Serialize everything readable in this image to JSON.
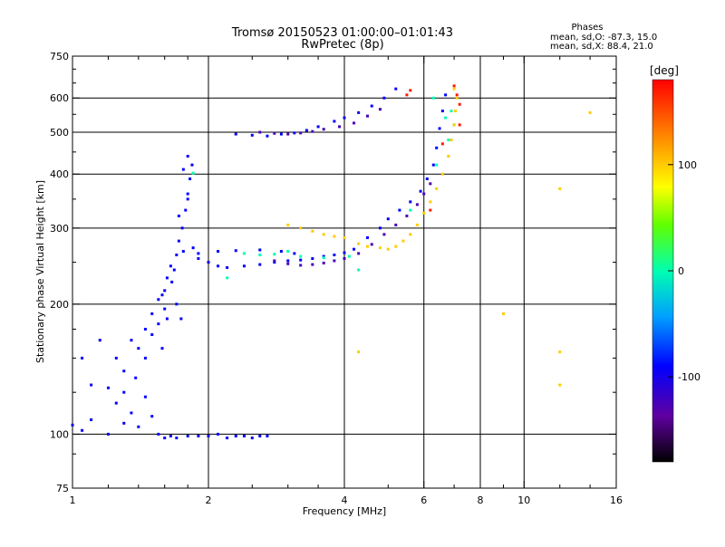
{
  "title": "Tromsø 20150523 01:00:00–01:01:43",
  "subtitle": "RwPretec (8p)",
  "stats": {
    "heading": "Phases",
    "line_o": "mean, sd,O:  -87.3, 15.0",
    "line_x": "mean, sd,X:   88.4, 21.0"
  },
  "chart_data": {
    "type": "scatter",
    "title": "Tromsø 20150523 01:00:00–01:01:43",
    "subtitle": "RwPretec (8p)",
    "xlabel": "Frequency [MHz]",
    "ylabel": "Stationary phase Virtual Height [km]",
    "x_scale": "log",
    "y_scale": "log",
    "xlim": [
      1,
      16
    ],
    "ylim": [
      75,
      750
    ],
    "x_ticks": [
      1,
      2,
      4,
      6,
      8,
      10,
      16
    ],
    "x_tick_labels": [
      "1",
      "2",
      "4",
      "6",
      "8",
      "10",
      "16"
    ],
    "y_ticks": [
      75,
      100,
      200,
      300,
      400,
      500,
      600,
      750
    ],
    "y_tick_labels": [
      "75",
      "100",
      "200",
      "300",
      "400",
      "500",
      "600",
      "750"
    ],
    "x_major_grid": [
      2,
      4,
      6,
      8,
      10
    ],
    "y_major_grid": [
      100,
      200,
      300,
      400,
      500,
      600
    ],
    "grid": true,
    "colorbar": {
      "label": "[deg]",
      "min": -180,
      "max": 180,
      "ticks": [
        100,
        0,
        -100
      ],
      "tick_labels": [
        "100",
        "0",
        "-100"
      ]
    },
    "series": [
      {
        "phase": -100,
        "points": [
          [
            1.0,
            105
          ],
          [
            1.05,
            102
          ],
          [
            1.1,
            108
          ],
          [
            1.2,
            100
          ],
          [
            1.3,
            106
          ],
          [
            1.4,
            104
          ],
          [
            1.5,
            110
          ],
          [
            1.55,
            100
          ],
          [
            1.6,
            98
          ],
          [
            1.65,
            99
          ],
          [
            1.7,
            98
          ],
          [
            1.8,
            99
          ],
          [
            1.9,
            99
          ],
          [
            2.0,
            99
          ],
          [
            2.1,
            100
          ],
          [
            2.2,
            98
          ],
          [
            2.3,
            99
          ],
          [
            2.4,
            99
          ],
          [
            2.5,
            98
          ],
          [
            2.6,
            99
          ],
          [
            2.7,
            99
          ],
          [
            1.1,
            130
          ],
          [
            1.2,
            128
          ],
          [
            1.25,
            150
          ],
          [
            1.3,
            140
          ],
          [
            1.35,
            165
          ],
          [
            1.4,
            158
          ],
          [
            1.45,
            175
          ],
          [
            1.5,
            190
          ],
          [
            1.55,
            205
          ],
          [
            1.6,
            215
          ],
          [
            1.62,
            230
          ],
          [
            1.65,
            245
          ],
          [
            1.7,
            260
          ],
          [
            1.72,
            280
          ],
          [
            1.75,
            300
          ],
          [
            1.78,
            330
          ],
          [
            1.8,
            360
          ],
          [
            1.82,
            390
          ],
          [
            1.84,
            420
          ],
          [
            1.8,
            440
          ],
          [
            1.55,
            180
          ],
          [
            1.6,
            195
          ],
          [
            1.5,
            170
          ],
          [
            1.45,
            150
          ],
          [
            1.38,
            135
          ],
          [
            1.3,
            125
          ],
          [
            1.58,
            210
          ],
          [
            1.66,
            225
          ],
          [
            1.7,
            200
          ],
          [
            1.74,
            185
          ],
          [
            1.68,
            240
          ],
          [
            1.76,
            265
          ],
          [
            1.85,
            270
          ],
          [
            1.9,
            255
          ],
          [
            2.0,
            250
          ],
          [
            2.1,
            245
          ],
          [
            2.2,
            243
          ],
          [
            2.4,
            245
          ],
          [
            2.6,
            247
          ],
          [
            2.8,
            250
          ],
          [
            3.0,
            252
          ],
          [
            3.2,
            253
          ],
          [
            3.4,
            255
          ],
          [
            3.6,
            258
          ],
          [
            3.8,
            260
          ],
          [
            4.0,
            263
          ],
          [
            4.2,
            268
          ],
          [
            4.5,
            285
          ],
          [
            4.8,
            300
          ],
          [
            5.0,
            315
          ],
          [
            5.3,
            330
          ],
          [
            5.6,
            345
          ],
          [
            5.9,
            365
          ],
          [
            6.1,
            390
          ],
          [
            6.3,
            420
          ],
          [
            6.4,
            460
          ],
          [
            6.5,
            510
          ],
          [
            6.6,
            560
          ],
          [
            6.7,
            610
          ],
          [
            1.9,
            262
          ],
          [
            2.1,
            265
          ],
          [
            2.3,
            266
          ],
          [
            2.6,
            267
          ],
          [
            2.9,
            265
          ],
          [
            3.1,
            262
          ],
          [
            2.3,
            495
          ],
          [
            2.5,
            492
          ],
          [
            2.7,
            490
          ],
          [
            2.9,
            495
          ],
          [
            3.1,
            498
          ],
          [
            3.3,
            505
          ],
          [
            3.5,
            515
          ],
          [
            3.8,
            530
          ],
          [
            4.0,
            540
          ],
          [
            4.3,
            555
          ],
          [
            4.6,
            575
          ],
          [
            4.9,
            600
          ],
          [
            5.2,
            630
          ],
          [
            1.15,
            165
          ],
          [
            1.05,
            150
          ],
          [
            1.25,
            118
          ],
          [
            1.35,
            112
          ],
          [
            1.45,
            122
          ],
          [
            1.58,
            158
          ],
          [
            1.62,
            185
          ],
          [
            1.72,
            320
          ],
          [
            1.8,
            350
          ],
          [
            1.76,
            410
          ]
        ]
      },
      {
        "phase": -130,
        "points": [
          [
            2.8,
            252
          ],
          [
            3.0,
            248
          ],
          [
            3.2,
            246
          ],
          [
            3.4,
            247
          ],
          [
            3.6,
            249
          ],
          [
            3.8,
            252
          ],
          [
            4.0,
            255
          ],
          [
            4.3,
            262
          ],
          [
            4.6,
            275
          ],
          [
            4.9,
            290
          ],
          [
            5.2,
            305
          ],
          [
            5.5,
            320
          ],
          [
            5.8,
            340
          ],
          [
            6.0,
            360
          ],
          [
            6.2,
            380
          ],
          [
            2.6,
            500
          ],
          [
            2.8,
            497
          ],
          [
            3.0,
            495
          ],
          [
            3.2,
            498
          ],
          [
            3.4,
            502
          ],
          [
            3.6,
            508
          ],
          [
            3.9,
            515
          ],
          [
            4.2,
            525
          ],
          [
            4.5,
            545
          ],
          [
            4.8,
            565
          ]
        ]
      },
      {
        "phase": 0,
        "points": [
          [
            2.4,
            262
          ],
          [
            2.6,
            260
          ],
          [
            2.8,
            261
          ],
          [
            3.2,
            258
          ],
          [
            3.6,
            256
          ],
          [
            4.1,
            258
          ],
          [
            4.3,
            240
          ],
          [
            5.6,
            330
          ],
          [
            6.4,
            420
          ],
          [
            6.8,
            480
          ],
          [
            7.0,
            520
          ],
          [
            6.9,
            560
          ],
          [
            6.7,
            540
          ],
          [
            3.0,
            265
          ],
          [
            1.85,
            402
          ],
          [
            2.2,
            230
          ],
          [
            6.3,
            600
          ]
        ]
      },
      {
        "phase": 100,
        "points": [
          [
            3.0,
            305
          ],
          [
            3.2,
            300
          ],
          [
            3.4,
            295
          ],
          [
            3.6,
            290
          ],
          [
            3.8,
            287
          ],
          [
            4.0,
            285
          ],
          [
            4.3,
            276
          ],
          [
            4.5,
            272
          ],
          [
            4.8,
            270
          ],
          [
            5.0,
            268
          ],
          [
            5.2,
            272
          ],
          [
            5.4,
            280
          ],
          [
            5.6,
            290
          ],
          [
            5.8,
            305
          ],
          [
            6.0,
            325
          ],
          [
            6.2,
            345
          ],
          [
            6.4,
            370
          ],
          [
            6.6,
            400
          ],
          [
            6.8,
            440
          ],
          [
            6.9,
            480
          ],
          [
            7.0,
            520
          ],
          [
            7.05,
            560
          ],
          [
            7.1,
            600
          ],
          [
            7.0,
            630
          ],
          [
            9.0,
            190
          ],
          [
            12.0,
            155
          ],
          [
            12.0,
            130
          ],
          [
            12.0,
            370
          ],
          [
            14.0,
            555
          ],
          [
            4.3,
            155
          ]
        ]
      },
      {
        "phase": 170,
        "points": [
          [
            5.5,
            610
          ],
          [
            5.6,
            625
          ],
          [
            7.0,
            640
          ],
          [
            7.1,
            610
          ],
          [
            7.2,
            580
          ],
          [
            6.2,
            330
          ],
          [
            6.6,
            470
          ],
          [
            7.2,
            520
          ]
        ]
      }
    ]
  }
}
